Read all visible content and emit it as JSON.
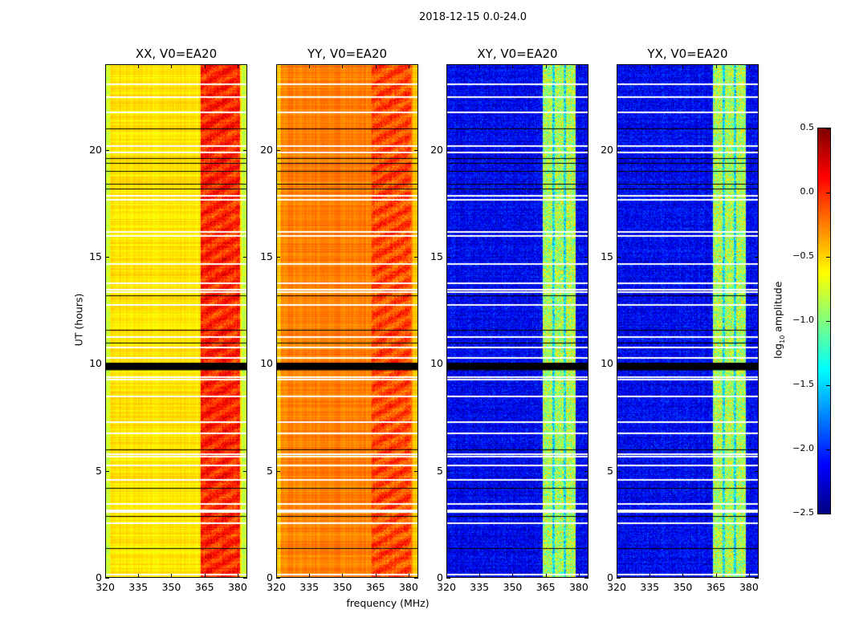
{
  "chart_data": {
    "type": "heatmap",
    "title": "2018-12-15 0.0-24.0",
    "xlabel": "frequency (MHz)",
    "ylabel": "UT (hours)",
    "xlim": [
      320,
      384.4
    ],
    "ylim": [
      0,
      24
    ],
    "xticks": [
      320,
      335,
      350,
      365,
      380
    ],
    "yticks": [
      0,
      5,
      10,
      15,
      20
    ],
    "colorbar": {
      "label_prefix": "log",
      "label_sub": "10",
      "label_suffix": " amplitude",
      "colormap": "jet",
      "range": [
        -2.5,
        0.5
      ],
      "ticks": [
        "0.5",
        "0.0",
        "−0.5",
        "−1.0",
        "−1.5",
        "−2.0",
        "−2.5"
      ],
      "tick_values": [
        0.5,
        0.0,
        -0.5,
        -1.0,
        -1.5,
        -2.0,
        -2.5
      ]
    },
    "flagged_white_hours": [
      23.1,
      22.5,
      21.8,
      20.2,
      19.9,
      17.9,
      17.7,
      16.2,
      16.0,
      14.7,
      13.8,
      13.5,
      13.4,
      12.8,
      11.3,
      10.8,
      10.3,
      9.4,
      9.3,
      8.5,
      7.3,
      6.8,
      5.8,
      5.7,
      5.3,
      4.6,
      3.5,
      3.2,
      3.1,
      2.6,
      0.2
    ],
    "flagged_black_hours": [
      21.0,
      19.6,
      19.4,
      19.0,
      18.4,
      18.2,
      13.2,
      11.6,
      11.0,
      6.0,
      4.2,
      2.9,
      1.4
    ],
    "black_band_hours": [
      9.7,
      10.05
    ],
    "panels": [
      {
        "title": "XX, V0=EA20",
        "base": -0.55,
        "edge_drop": -0.25,
        "bands": [
          {
            "from": 363,
            "to": 381,
            "level": -0.05
          }
        ]
      },
      {
        "title": "YY, V0=EA20",
        "base": -0.25,
        "edge_drop": -0.2,
        "bands": [
          {
            "from": 363,
            "to": 381,
            "level": -0.15
          }
        ]
      },
      {
        "title": "XY, V0=EA20",
        "base": -2.15,
        "edge_drop": 0,
        "bands": [
          {
            "from": 363.5,
            "to": 368,
            "level": -0.85
          },
          {
            "from": 368,
            "to": 369,
            "level": -1.4
          },
          {
            "from": 369,
            "to": 373,
            "level": -0.85
          },
          {
            "from": 373,
            "to": 374,
            "level": -1.4
          },
          {
            "from": 374,
            "to": 378.5,
            "level": -0.85
          }
        ]
      },
      {
        "title": "YX, V0=EA20",
        "base": -2.15,
        "edge_drop": 0,
        "bands": [
          {
            "from": 363.5,
            "to": 368,
            "level": -0.85
          },
          {
            "from": 368,
            "to": 369,
            "level": -1.4
          },
          {
            "from": 369,
            "to": 373,
            "level": -0.85
          },
          {
            "from": 373,
            "to": 374,
            "level": -1.4
          },
          {
            "from": 374,
            "to": 378.5,
            "level": -0.85
          }
        ]
      }
    ]
  }
}
